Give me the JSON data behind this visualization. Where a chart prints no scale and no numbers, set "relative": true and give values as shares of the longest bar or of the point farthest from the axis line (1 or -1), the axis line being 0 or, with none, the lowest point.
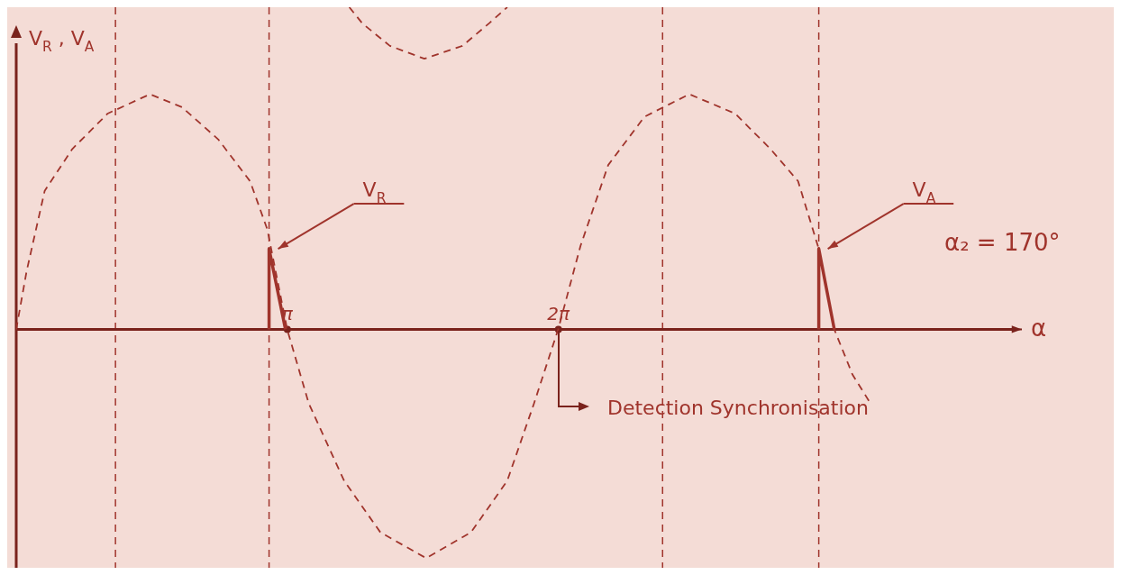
{
  "chart_data": {
    "type": "line",
    "relative": true,
    "xlabel": "α",
    "ylabel": "V$_{R}$ , V$_{A}$",
    "xlim": [
      0,
      11.57
    ],
    "xticks": [
      {
        "value": 3.1416,
        "label": "π"
      },
      {
        "value": 6.2832,
        "label": "2π"
      }
    ],
    "series": [
      {
        "name": "V$_{A}$",
        "color": "#a0342c",
        "line_style": "dashed",
        "x": [
          0,
          0.12,
          0.33,
          0.65,
          1.06,
          1.55,
          1.92,
          2.34,
          2.71,
          2.91,
          3.14,
          3.39,
          3.8,
          4.22,
          4.75,
          5.27,
          5.69,
          6.0,
          6.28,
          6.54,
          6.86,
          7.28,
          7.8,
          8.33,
          8.74,
          9.06,
          9.3,
          9.48,
          9.69,
          9.9
        ],
        "values": [
          0,
          0.18,
          0.43,
          0.56,
          0.67,
          0.73,
          0.69,
          0.59,
          0.46,
          0.31,
          0,
          -0.23,
          -0.47,
          -0.63,
          -0.71,
          -0.63,
          -0.47,
          -0.23,
          0,
          0.26,
          0.51,
          0.66,
          0.73,
          0.67,
          0.56,
          0.46,
          0.25,
          0,
          -0.14,
          -0.23
        ]
      },
      {
        "name": "V$_{R}$",
        "color": "#a0342c",
        "line_style": "solid",
        "x": [
          2.93,
          2.93,
          3.12,
          6.28,
          9.3,
          9.3,
          9.48
        ],
        "values": [
          0,
          0.25,
          0,
          null,
          0,
          0.25,
          0
        ]
      },
      {
        "color": "#a0342c",
        "line_style": "dashed",
        "x": [
          3.86,
          4.01,
          4.33,
          4.73,
          5.17,
          5.48,
          5.69
        ],
        "values": [
          1,
          0.95,
          0.88,
          0.84,
          0.88,
          0.95,
          1
        ]
      }
    ],
    "ref_lines": [
      {
        "axis": "x",
        "value": 1.15,
        "color": "#a0342c",
        "line_style": "dashed"
      },
      {
        "axis": "x",
        "value": 2.93,
        "color": "#a0342c",
        "line_style": "dashed"
      },
      {
        "axis": "x",
        "value": 7.49,
        "color": "#a0342c",
        "line_style": "dashed"
      },
      {
        "axis": "x",
        "value": 9.3,
        "color": "#a0342c",
        "line_style": "dashed"
      }
    ],
    "annotations": [
      "α₂ = 170°",
      "Detection Synchronisation"
    ]
  }
}
